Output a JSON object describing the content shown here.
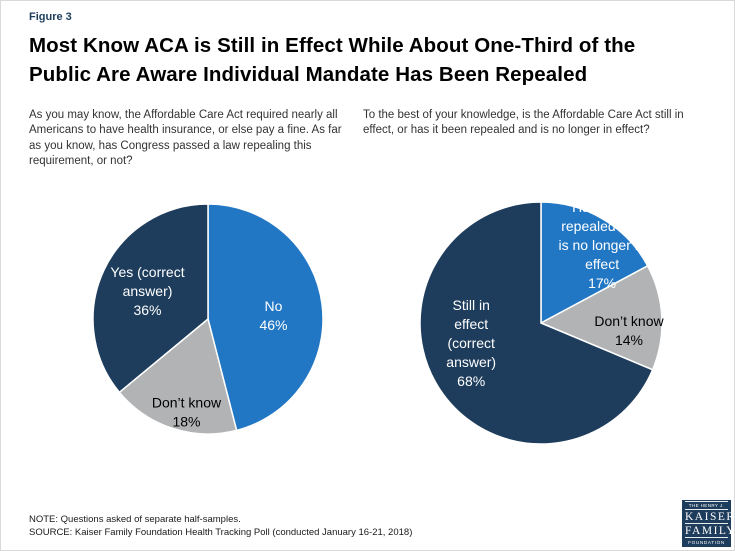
{
  "figure_label": "Figure 3",
  "title": {
    "line1": "Most Know ACA is Still in Effect While About One-Third of the",
    "line2": "Public Are Aware Individual Mandate Has Been Repealed"
  },
  "colors": {
    "navy": "#1e3d5c",
    "blue": "#2277c4",
    "gray": "#b1b3b5"
  },
  "chart_data": [
    {
      "type": "pie",
      "question": "As you may know, the Affordable Care Act required nearly all Americans to have health insurance, or else pay a fine. As far as you know, has Congress passed a law repealing this requirement, or not?",
      "legend_position": "none",
      "slices": [
        {
          "key": "no",
          "label": "No",
          "value": 46,
          "color": "blue",
          "label_lines": [
            "No",
            "46%"
          ],
          "text_color": "#ffffff",
          "label_angle": 87,
          "label_r": 0.57
        },
        {
          "key": "dont-know",
          "label": "Don’t know",
          "value": 18,
          "color": "gray",
          "label_lines": [
            "Don’t know",
            "18%"
          ],
          "text_color": "#000000",
          "label_angle": 193,
          "label_r": 0.83
        },
        {
          "key": "yes-correct-answer",
          "label": "Yes (correct answer)",
          "value": 36,
          "color": "navy",
          "label_lines": [
            "Yes (correct",
            "answer)",
            "36%"
          ],
          "text_color": "#ffffff",
          "label_angle": 295,
          "label_r": 0.58
        }
      ]
    },
    {
      "type": "pie",
      "question": "To the best of your knowledge, is the Affordable Care Act still in effect, or has it been repealed and is no longer in effect?",
      "legend_position": "none",
      "slices": [
        {
          "key": "repealed-no-longer-in-effect",
          "label": "Has been repealed and is no longer in effect",
          "value": 17,
          "color": "blue",
          "label_lines": [
            "Has been",
            "repealed and",
            "is no longer in",
            "effect",
            "17%"
          ],
          "text_color": "#ffffff",
          "label_angle": 38,
          "label_r": 0.82
        },
        {
          "key": "dont-know",
          "label": "Don’t know",
          "value": 14,
          "color": "gray",
          "label_lines": [
            "Don’t know",
            "14%"
          ],
          "text_color": "#000000",
          "label_angle": 95,
          "label_r": 0.73
        },
        {
          "key": "still-in-effect-correct-answer",
          "label": "Still in effect (correct answer)",
          "value": 68,
          "color": "navy",
          "label_lines": [
            "Still in",
            "effect",
            "(correct",
            "answer)",
            "68%"
          ],
          "text_color": "#ffffff",
          "label_angle": 254,
          "label_r": 0.6
        }
      ]
    }
  ],
  "note": "NOTE: Questions asked of separate half-samples.",
  "source": "SOURCE: Kaiser Family Foundation Health Tracking Poll (conducted January 16-21, 2018)",
  "logo": {
    "top": "THE HENRY J.",
    "kaiser": "KAISER",
    "family": "FAMILY",
    "foundation": "FOUNDATION"
  }
}
